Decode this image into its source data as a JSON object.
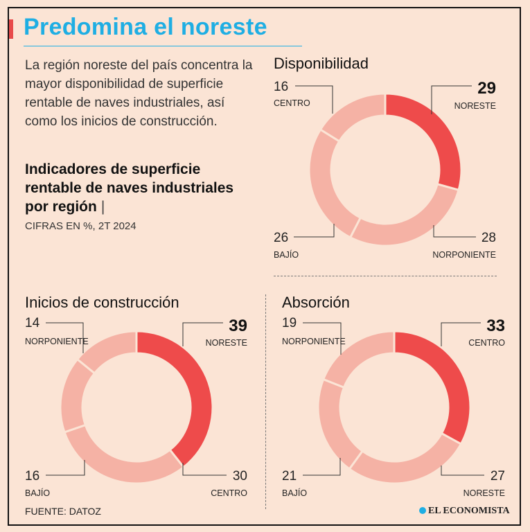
{
  "header": {
    "title": "Predomina el noreste",
    "intro": "La región noreste del país concentra la mayor disponibilidad de superficie rentable de naves industriales, así como los inicios de construcción.",
    "subtitle": "Indicadores de superficie rentable de naves industriales por región",
    "subtitle_sep": "|",
    "units": "CIFRAS EN %, 2T 2024"
  },
  "footer": {
    "source": "FUENTE: DATOZ",
    "brand": "EL ECONOMISTA"
  },
  "colors": {
    "highlight": "#ee4b4b",
    "other": "#f5b2a5",
    "accent": "#1faee3"
  },
  "chart_data": [
    {
      "type": "pie",
      "title": "Disponibilidad",
      "categories": [
        "NORESTE",
        "NORPONIENTE",
        "BAJÍO",
        "CENTRO"
      ],
      "values": [
        29,
        28,
        26,
        16
      ],
      "highlight": "NORESTE"
    },
    {
      "type": "pie",
      "title": "Inicios de construcción",
      "categories": [
        "NORESTE",
        "CENTRO",
        "BAJÍO",
        "NORPONIENTE"
      ],
      "values": [
        39,
        30,
        16,
        14
      ],
      "highlight": "NORESTE"
    },
    {
      "type": "pie",
      "title": "Absorción",
      "categories": [
        "CENTRO",
        "NORESTE",
        "BAJÍO",
        "NORPONIENTE"
      ],
      "values": [
        33,
        27,
        21,
        19
      ],
      "highlight": "CENTRO"
    }
  ]
}
